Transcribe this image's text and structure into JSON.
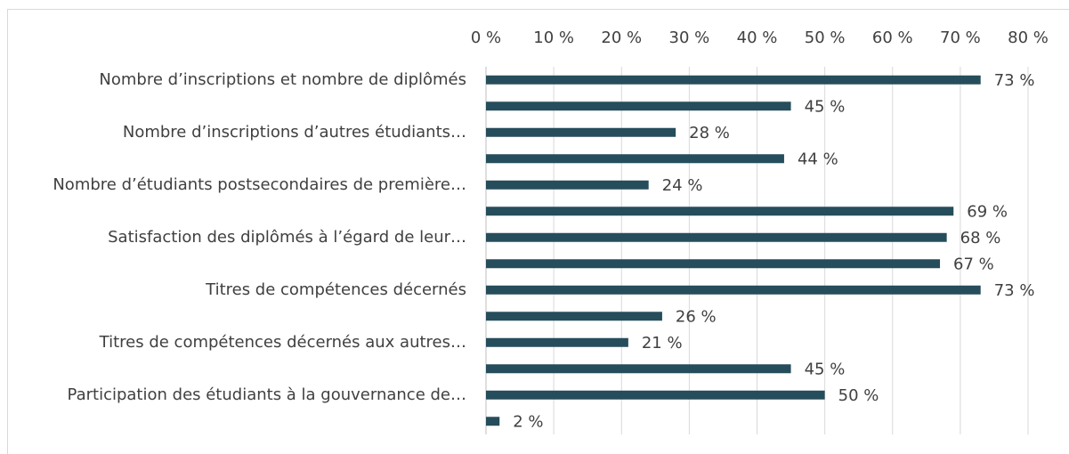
{
  "chart_data": {
    "type": "barh",
    "categories": [
      "Nombre d’inscriptions et nombre de diplômés",
      null,
      "Nombre d’inscriptions d’autres étudiants…",
      null,
      "Nombre d’étudiants postsecondaires de première…",
      null,
      "Satisfaction des diplômés à l’égard de leur…",
      null,
      "Titres de compétences décernés",
      null,
      "Titres de compétences décernés aux autres…",
      null,
      "Participation des étudiants à la gouvernance de…",
      null
    ],
    "values": [
      73,
      45,
      28,
      44,
      24,
      69,
      68,
      67,
      73,
      26,
      21,
      45,
      50,
      2
    ],
    "value_labels": [
      "73 %",
      "45 %",
      "28 %",
      "44 %",
      "24 %",
      "69 %",
      "68 %",
      "67 %",
      "73 %",
      "26 %",
      "21 %",
      "45 %",
      "50 %",
      "2 %"
    ],
    "color": "#264d5b",
    "xlim": [
      0,
      80
    ],
    "xticks": [
      {
        "value": 0,
        "label": "0 %"
      },
      {
        "value": 10,
        "label": "10 %"
      },
      {
        "value": 20,
        "label": "20 %"
      },
      {
        "value": 30,
        "label": "30 %"
      },
      {
        "value": 40,
        "label": "40 %"
      },
      {
        "value": 50,
        "label": "50 %"
      },
      {
        "value": 60,
        "label": "60 %"
      },
      {
        "value": 70,
        "label": "70 %"
      },
      {
        "value": 80,
        "label": "80 %"
      }
    ],
    "grid": true
  }
}
